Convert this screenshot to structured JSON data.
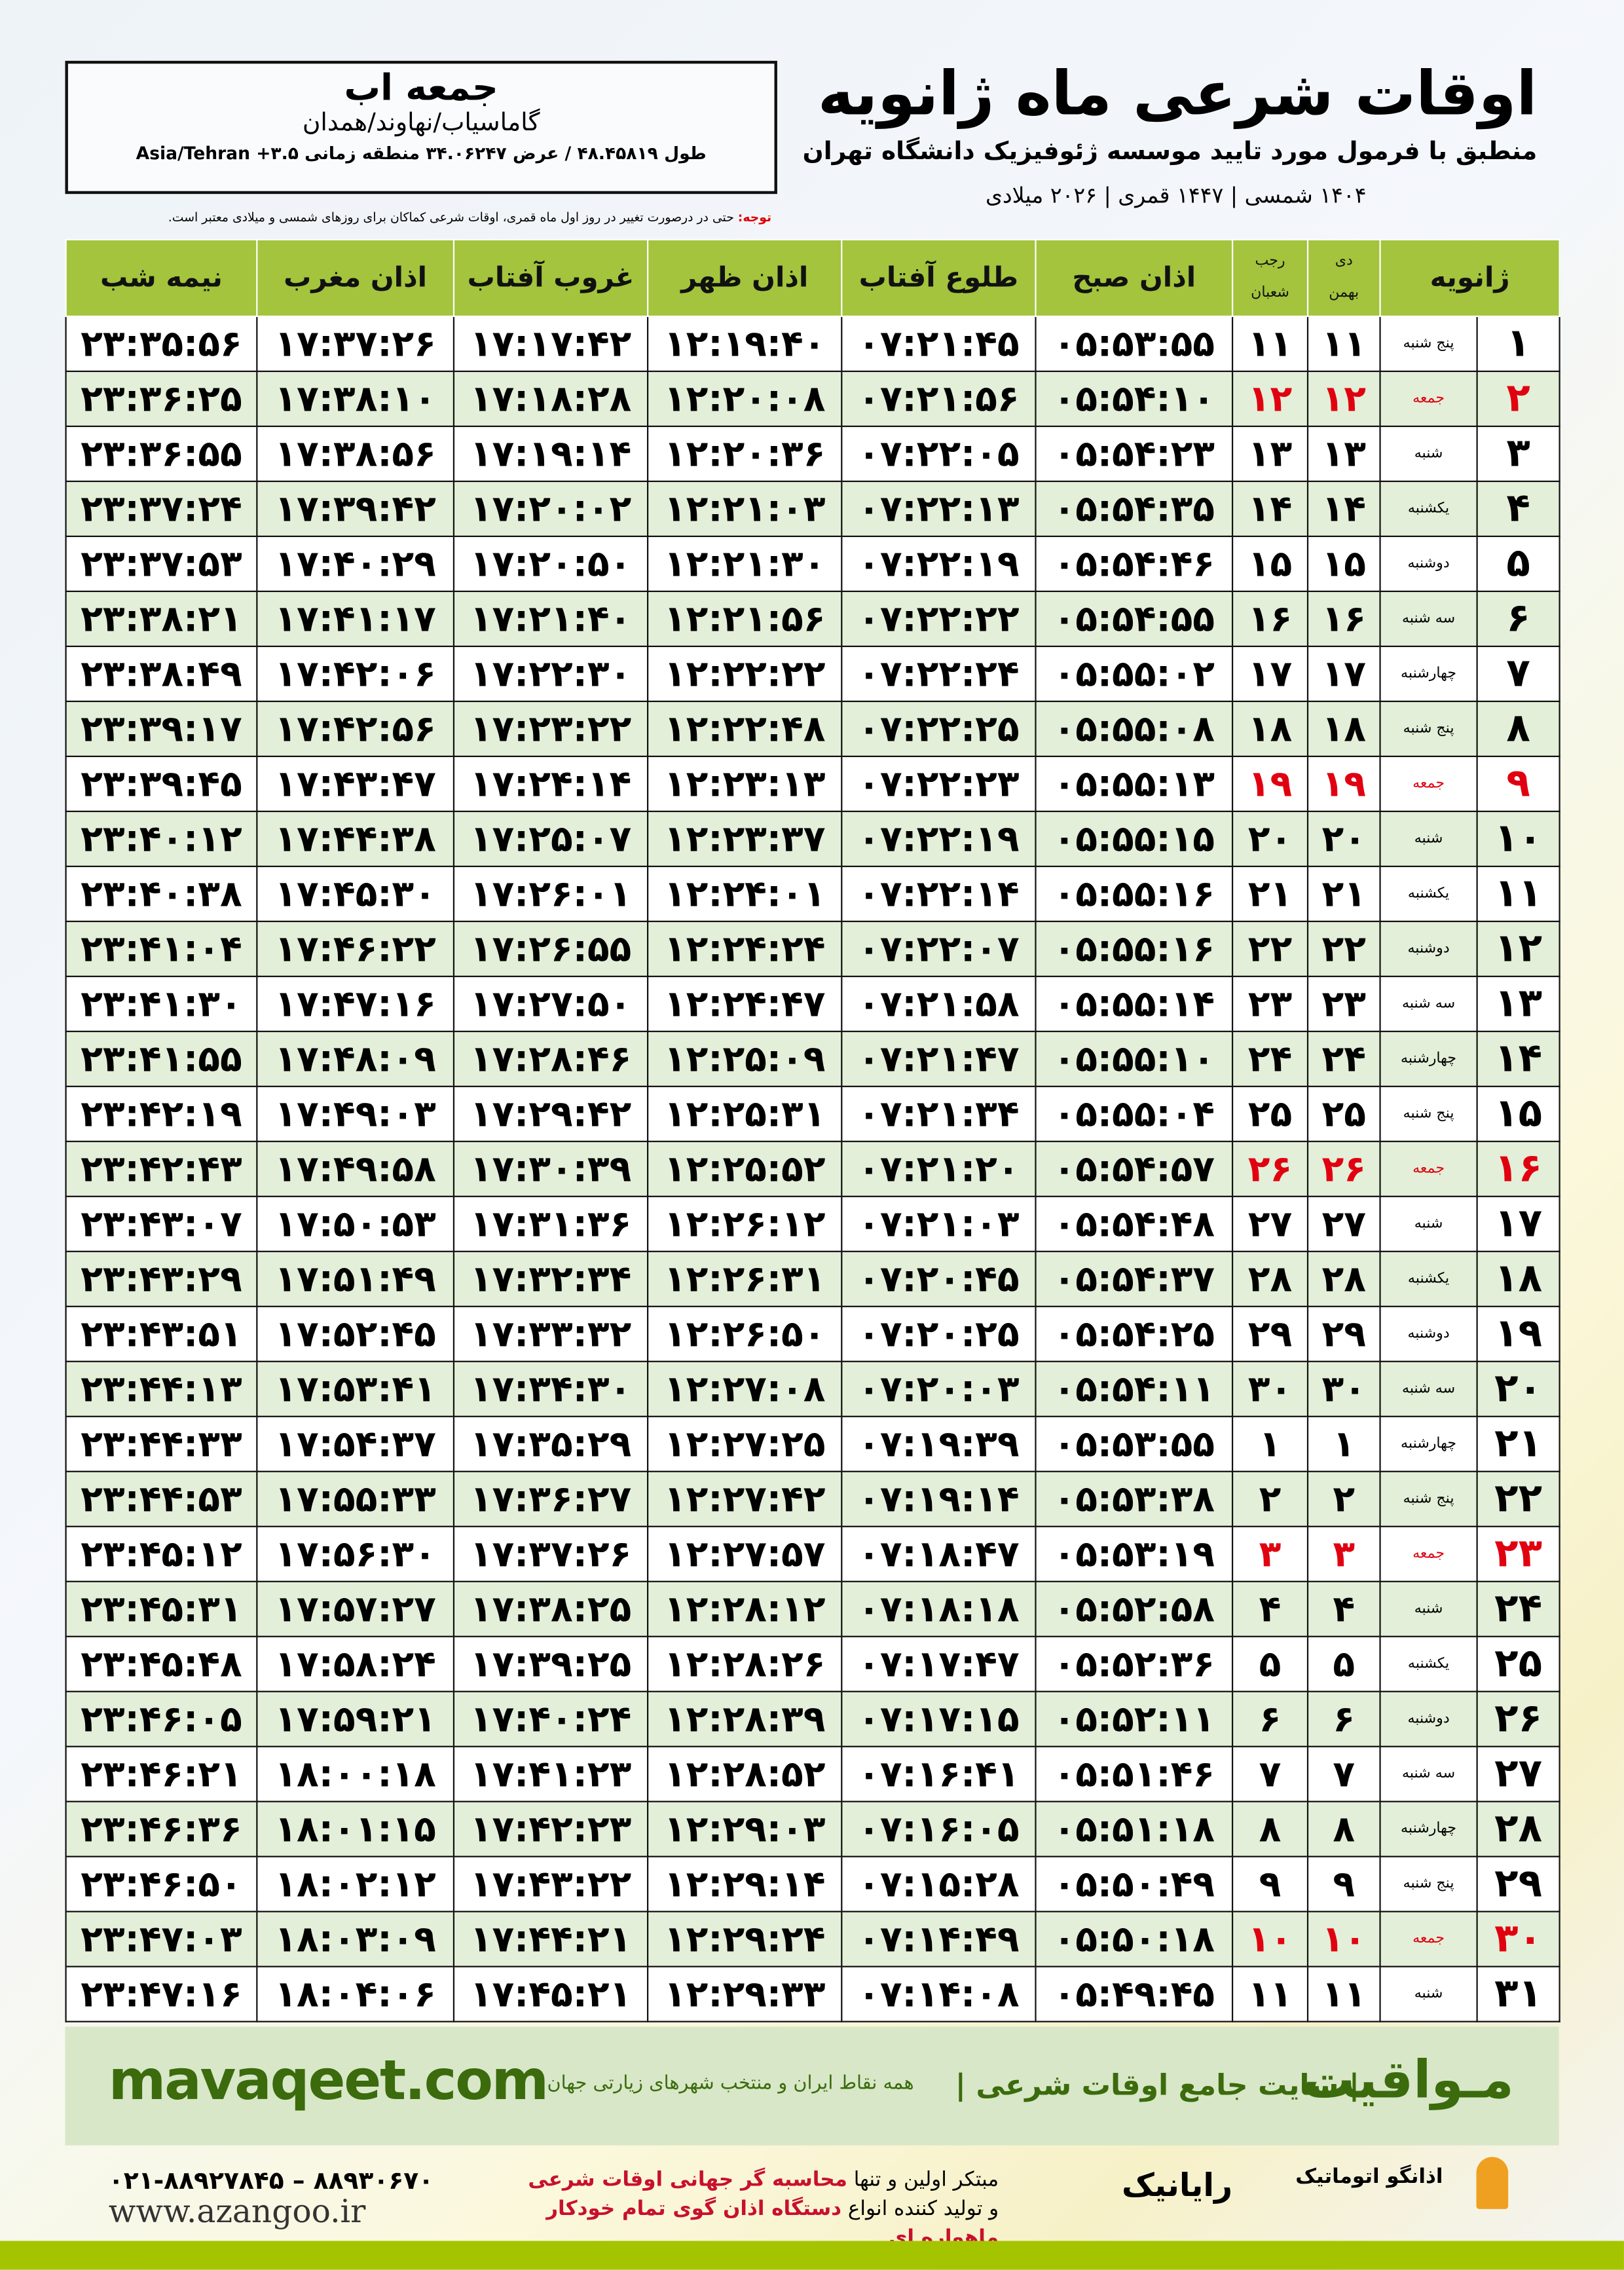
{
  "header": {
    "title": "اوقات شرعی ماه ژانویه",
    "subtitle": "منطبق با فرمول مورد تایید موسسه ژئوفیزیک دانشگاه تهران",
    "years": "۱۴۰۴ شمسی | ۱۴۴۷ قمری | ۲۰۲۶ میلادی"
  },
  "location": {
    "city": "جمعه اب",
    "region": "گاماسیاب/نهاوند/همدان",
    "coords": "طول ۴۸.۴۵۸۱۹ / عرض ۳۴.۰۶۲۴۷ منطقه زمانی ۳.۵+ Asia/Tehran"
  },
  "note": {
    "label": "توجه:",
    "text": " حتی در درصورت تغییر در روز اول ماه قمری، اوقات شرعی کماکان برای روزهای شمسی و میلادی معتبر است."
  },
  "table": {
    "headers": {
      "month": "ژانویه",
      "solar_top": "دی",
      "solar_bottom": "بهمن",
      "lunar_top": "رجب",
      "lunar_bottom": "شعبان",
      "fajr": "اذان صبح",
      "sunrise": "طلوع آفتاب",
      "dhuhr": "اذان ظهر",
      "sunset": "غروب آفتاب",
      "maghrib": "اذان مغرب",
      "midnight": "نیمه شب"
    },
    "friday_color": "#e00010",
    "rows": [
      [
        "۱",
        "پنج شنبه",
        "۱۱",
        "۱۱",
        "۰۵:۵۳:۵۵",
        "۰۷:۲۱:۴۵",
        "۱۲:۱۹:۴۰",
        "۱۷:۱۷:۴۲",
        "۱۷:۳۷:۲۶",
        "۲۳:۳۵:۵۶"
      ],
      [
        "۲",
        "جمعه",
        "۱۲",
        "۱۲",
        "۰۵:۵۴:۱۰",
        "۰۷:۲۱:۵۶",
        "۱۲:۲۰:۰۸",
        "۱۷:۱۸:۲۸",
        "۱۷:۳۸:۱۰",
        "۲۳:۳۶:۲۵"
      ],
      [
        "۳",
        "شنبه",
        "۱۳",
        "۱۳",
        "۰۵:۵۴:۲۳",
        "۰۷:۲۲:۰۵",
        "۱۲:۲۰:۳۶",
        "۱۷:۱۹:۱۴",
        "۱۷:۳۸:۵۶",
        "۲۳:۳۶:۵۵"
      ],
      [
        "۴",
        "یکشنبه",
        "۱۴",
        "۱۴",
        "۰۵:۵۴:۳۵",
        "۰۷:۲۲:۱۳",
        "۱۲:۲۱:۰۳",
        "۱۷:۲۰:۰۲",
        "۱۷:۳۹:۴۲",
        "۲۳:۳۷:۲۴"
      ],
      [
        "۵",
        "دوشنبه",
        "۱۵",
        "۱۵",
        "۰۵:۵۴:۴۶",
        "۰۷:۲۲:۱۹",
        "۱۲:۲۱:۳۰",
        "۱۷:۲۰:۵۰",
        "۱۷:۴۰:۲۹",
        "۲۳:۳۷:۵۳"
      ],
      [
        "۶",
        "سه شنبه",
        "۱۶",
        "۱۶",
        "۰۵:۵۴:۵۵",
        "۰۷:۲۲:۲۲",
        "۱۲:۲۱:۵۶",
        "۱۷:۲۱:۴۰",
        "۱۷:۴۱:۱۷",
        "۲۳:۳۸:۲۱"
      ],
      [
        "۷",
        "چهارشنبه",
        "۱۷",
        "۱۷",
        "۰۵:۵۵:۰۲",
        "۰۷:۲۲:۲۴",
        "۱۲:۲۲:۲۲",
        "۱۷:۲۲:۳۰",
        "۱۷:۴۲:۰۶",
        "۲۳:۳۸:۴۹"
      ],
      [
        "۸",
        "پنج شنبه",
        "۱۸",
        "۱۸",
        "۰۵:۵۵:۰۸",
        "۰۷:۲۲:۲۵",
        "۱۲:۲۲:۴۸",
        "۱۷:۲۳:۲۲",
        "۱۷:۴۲:۵۶",
        "۲۳:۳۹:۱۷"
      ],
      [
        "۹",
        "جمعه",
        "۱۹",
        "۱۹",
        "۰۵:۵۵:۱۳",
        "۰۷:۲۲:۲۳",
        "۱۲:۲۳:۱۳",
        "۱۷:۲۴:۱۴",
        "۱۷:۴۳:۴۷",
        "۲۳:۳۹:۴۵"
      ],
      [
        "۱۰",
        "شنبه",
        "۲۰",
        "۲۰",
        "۰۵:۵۵:۱۵",
        "۰۷:۲۲:۱۹",
        "۱۲:۲۳:۳۷",
        "۱۷:۲۵:۰۷",
        "۱۷:۴۴:۳۸",
        "۲۳:۴۰:۱۲"
      ],
      [
        "۱۱",
        "یکشنبه",
        "۲۱",
        "۲۱",
        "۰۵:۵۵:۱۶",
        "۰۷:۲۲:۱۴",
        "۱۲:۲۴:۰۱",
        "۱۷:۲۶:۰۱",
        "۱۷:۴۵:۳۰",
        "۲۳:۴۰:۳۸"
      ],
      [
        "۱۲",
        "دوشنبه",
        "۲۲",
        "۲۲",
        "۰۵:۵۵:۱۶",
        "۰۷:۲۲:۰۷",
        "۱۲:۲۴:۲۴",
        "۱۷:۲۶:۵۵",
        "۱۷:۴۶:۲۲",
        "۲۳:۴۱:۰۴"
      ],
      [
        "۱۳",
        "سه شنبه",
        "۲۳",
        "۲۳",
        "۰۵:۵۵:۱۴",
        "۰۷:۲۱:۵۸",
        "۱۲:۲۴:۴۷",
        "۱۷:۲۷:۵۰",
        "۱۷:۴۷:۱۶",
        "۲۳:۴۱:۳۰"
      ],
      [
        "۱۴",
        "چهارشنبه",
        "۲۴",
        "۲۴",
        "۰۵:۵۵:۱۰",
        "۰۷:۲۱:۴۷",
        "۱۲:۲۵:۰۹",
        "۱۷:۲۸:۴۶",
        "۱۷:۴۸:۰۹",
        "۲۳:۴۱:۵۵"
      ],
      [
        "۱۵",
        "پنج شنبه",
        "۲۵",
        "۲۵",
        "۰۵:۵۵:۰۴",
        "۰۷:۲۱:۳۴",
        "۱۲:۲۵:۳۱",
        "۱۷:۲۹:۴۲",
        "۱۷:۴۹:۰۳",
        "۲۳:۴۲:۱۹"
      ],
      [
        "۱۶",
        "جمعه",
        "۲۶",
        "۲۶",
        "۰۵:۵۴:۵۷",
        "۰۷:۲۱:۲۰",
        "۱۲:۲۵:۵۲",
        "۱۷:۳۰:۳۹",
        "۱۷:۴۹:۵۸",
        "۲۳:۴۲:۴۳"
      ],
      [
        "۱۷",
        "شنبه",
        "۲۷",
        "۲۷",
        "۰۵:۵۴:۴۸",
        "۰۷:۲۱:۰۳",
        "۱۲:۲۶:۱۲",
        "۱۷:۳۱:۳۶",
        "۱۷:۵۰:۵۳",
        "۲۳:۴۳:۰۷"
      ],
      [
        "۱۸",
        "یکشنبه",
        "۲۸",
        "۲۸",
        "۰۵:۵۴:۳۷",
        "۰۷:۲۰:۴۵",
        "۱۲:۲۶:۳۱",
        "۱۷:۳۲:۳۴",
        "۱۷:۵۱:۴۹",
        "۲۳:۴۳:۲۹"
      ],
      [
        "۱۹",
        "دوشنبه",
        "۲۹",
        "۲۹",
        "۰۵:۵۴:۲۵",
        "۰۷:۲۰:۲۵",
        "۱۲:۲۶:۵۰",
        "۱۷:۳۳:۳۲",
        "۱۷:۵۲:۴۵",
        "۲۳:۴۳:۵۱"
      ],
      [
        "۲۰",
        "سه شنبه",
        "۳۰",
        "۳۰",
        "۰۵:۵۴:۱۱",
        "۰۷:۲۰:۰۳",
        "۱۲:۲۷:۰۸",
        "۱۷:۳۴:۳۰",
        "۱۷:۵۳:۴۱",
        "۲۳:۴۴:۱۳"
      ],
      [
        "۲۱",
        "چهارشنبه",
        "۱",
        "۱",
        "۰۵:۵۳:۵۵",
        "۰۷:۱۹:۳۹",
        "۱۲:۲۷:۲۵",
        "۱۷:۳۵:۲۹",
        "۱۷:۵۴:۳۷",
        "۲۳:۴۴:۳۳"
      ],
      [
        "۲۲",
        "پنج شنبه",
        "۲",
        "۲",
        "۰۵:۵۳:۳۸",
        "۰۷:۱۹:۱۴",
        "۱۲:۲۷:۴۲",
        "۱۷:۳۶:۲۷",
        "۱۷:۵۵:۳۳",
        "۲۳:۴۴:۵۳"
      ],
      [
        "۲۳",
        "جمعه",
        "۳",
        "۳",
        "۰۵:۵۳:۱۹",
        "۰۷:۱۸:۴۷",
        "۱۲:۲۷:۵۷",
        "۱۷:۳۷:۲۶",
        "۱۷:۵۶:۳۰",
        "۲۳:۴۵:۱۲"
      ],
      [
        "۲۴",
        "شنبه",
        "۴",
        "۴",
        "۰۵:۵۲:۵۸",
        "۰۷:۱۸:۱۸",
        "۱۲:۲۸:۱۲",
        "۱۷:۳۸:۲۵",
        "۱۷:۵۷:۲۷",
        "۲۳:۴۵:۳۱"
      ],
      [
        "۲۵",
        "یکشنبه",
        "۵",
        "۵",
        "۰۵:۵۲:۳۶",
        "۰۷:۱۷:۴۷",
        "۱۲:۲۸:۲۶",
        "۱۷:۳۹:۲۵",
        "۱۷:۵۸:۲۴",
        "۲۳:۴۵:۴۸"
      ],
      [
        "۲۶",
        "دوشنبه",
        "۶",
        "۶",
        "۰۵:۵۲:۱۱",
        "۰۷:۱۷:۱۵",
        "۱۲:۲۸:۳۹",
        "۱۷:۴۰:۲۴",
        "۱۷:۵۹:۲۱",
        "۲۳:۴۶:۰۵"
      ],
      [
        "۲۷",
        "سه شنبه",
        "۷",
        "۷",
        "۰۵:۵۱:۴۶",
        "۰۷:۱۶:۴۱",
        "۱۲:۲۸:۵۲",
        "۱۷:۴۱:۲۳",
        "۱۸:۰۰:۱۸",
        "۲۳:۴۶:۲۱"
      ],
      [
        "۲۸",
        "چهارشنبه",
        "۸",
        "۸",
        "۰۵:۵۱:۱۸",
        "۰۷:۱۶:۰۵",
        "۱۲:۲۹:۰۳",
        "۱۷:۴۲:۲۳",
        "۱۸:۰۱:۱۵",
        "۲۳:۴۶:۳۶"
      ],
      [
        "۲۹",
        "پنج شنبه",
        "۹",
        "۹",
        "۰۵:۵۰:۴۹",
        "۰۷:۱۵:۲۸",
        "۱۲:۲۹:۱۴",
        "۱۷:۴۳:۲۲",
        "۱۸:۰۲:۱۲",
        "۲۳:۴۶:۵۰"
      ],
      [
        "۳۰",
        "جمعه",
        "۱۰",
        "۱۰",
        "۰۵:۵۰:۱۸",
        "۰۷:۱۴:۴۹",
        "۱۲:۲۹:۲۴",
        "۱۷:۴۴:۲۱",
        "۱۸:۰۳:۰۹",
        "۲۳:۴۷:۰۳"
      ],
      [
        "۳۱",
        "شنبه",
        "۱۱",
        "۱۱",
        "۰۵:۴۹:۴۵",
        "۰۷:۱۴:۰۸",
        "۱۲:۲۹:۳۳",
        "۱۷:۴۵:۲۱",
        "۱۸:۰۴:۰۶",
        "۲۳:۴۷:۱۶"
      ]
    ]
  },
  "footer": {
    "mavaqeet_logo": "مـواقیت",
    "mavaqeet_desc": "| سایت جامع اوقات شرعی |",
    "mavaqeet_tag": "همه نقاط ایران و منتخب شهرهای زیارتی جهان",
    "mavaqeet_url": "mavaqeet.com",
    "phones": "۰۲۱-۸۸۹۲۷۸۴۵ – ۸۸۹۳۰۶۷۰",
    "website": "www.azangoo.ir",
    "promo_line1_a": "مبتکر اولین و تنها ",
    "promo_line1_b": "محاسبه گر جهانی اوقات شرعی",
    "promo_line2_a": "و تولید کننده انواع ",
    "promo_line2_b": "دستگاه اذان گوی تمام خودکار ماهواره ای",
    "rayanik": "رایانیک",
    "azangoo": "اذانگو اتوماتیک",
    "brand_green": "#3b6b0c",
    "accent_red": "#c8102e"
  }
}
